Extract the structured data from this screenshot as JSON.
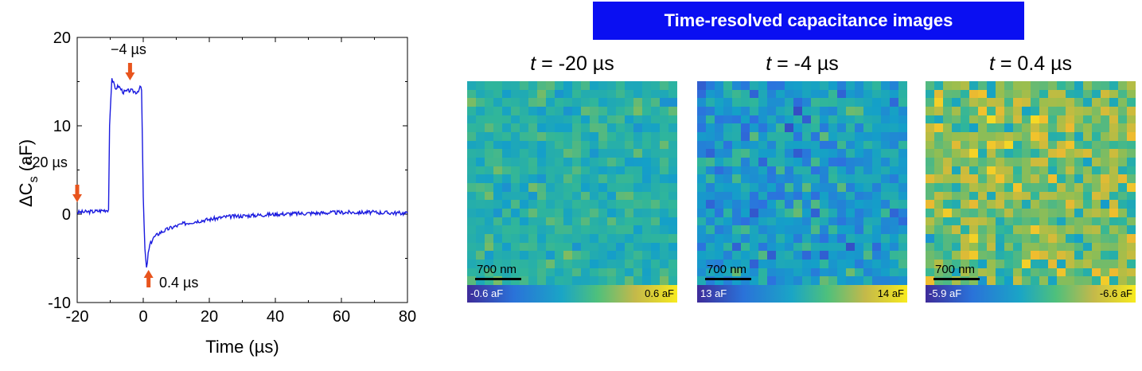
{
  "chart_data": [
    {
      "type": "line",
      "xlabel": "Time (µs)",
      "ylabel_prefix": "ΔC",
      "ylabel_sub": "s",
      "ylabel_suffix": "(aF)",
      "xlim": [
        -20,
        80
      ],
      "ylim": [
        -10,
        20
      ],
      "xticks": [
        -20,
        0,
        20,
        40,
        60,
        80
      ],
      "yticks": [
        -10,
        0,
        10,
        20
      ],
      "line_color": "#1a1adf",
      "series": [
        {
          "x": [
            -20,
            -15,
            -10.5,
            -10.2,
            -9.5,
            -8.5,
            -7.5,
            -6,
            -4,
            -2,
            -0.7,
            -0.5,
            0,
            0.5,
            1,
            1.5,
            2,
            3,
            5,
            8,
            12,
            16,
            20,
            25,
            30,
            35,
            40,
            50,
            60,
            70,
            80
          ],
          "y": [
            0.2,
            0.3,
            0.5,
            10,
            15.4,
            14.2,
            14.5,
            13.8,
            14.0,
            13.8,
            14.4,
            14.0,
            2,
            -4,
            -6.2,
            -4.5,
            -3.5,
            -2.7,
            -2.1,
            -1.6,
            -1.1,
            -0.8,
            -0.6,
            -0.3,
            -0.2,
            -0.1,
            0.0,
            0.1,
            0.2,
            0.2,
            0.1
          ]
        }
      ],
      "annotations": [
        {
          "text": "−4 µs",
          "x": -4,
          "y": 14,
          "arrow": "down"
        },
        {
          "text": "−20 µs",
          "x": -20,
          "y": 0.2,
          "arrow": "down"
        },
        {
          "text": "0.4 µs",
          "x": 0.4,
          "y": -6.5,
          "arrow": "up"
        }
      ],
      "arrow_color": "#e8541d"
    },
    {
      "type": "heatmap",
      "title": "Time-resolved capacitance images",
      "panels": [
        {
          "title_var": "t",
          "title_value": " = -20 µs",
          "scalebar": "700 nm",
          "cbar_min": "-0.6 aF",
          "cbar_max": "0.6 aF",
          "mean": 0.5,
          "spread": 0.12,
          "seed": 7
        },
        {
          "title_var": "t",
          "title_value": " = -4 µs",
          "scalebar": "700 nm",
          "cbar_min": "13 aF",
          "cbar_max": "14 aF",
          "mean": 0.38,
          "spread": 0.2,
          "seed": 23
        },
        {
          "title_var": "t",
          "title_value": " = 0.4 µs",
          "scalebar": "700 nm",
          "cbar_min": "-5.9 aF",
          "cbar_max": "-6.6 aF",
          "mean": 0.66,
          "spread": 0.22,
          "seed": 51
        }
      ]
    }
  ]
}
